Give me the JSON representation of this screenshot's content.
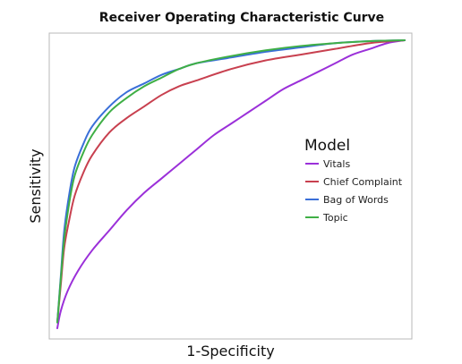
{
  "chart_data": {
    "type": "line",
    "title": "Receiver Operating Characteristic Curve",
    "xlabel": "1-Specificity",
    "ylabel": "Sensitivity",
    "xlim": [
      0,
      1
    ],
    "ylim": [
      0,
      1
    ],
    "grid": false,
    "x_ticks_shown": false,
    "y_ticks_shown": false,
    "legend": {
      "title": "Model",
      "position": "center-right"
    },
    "series": [
      {
        "name": "Vitals",
        "color": "#9B30D9",
        "points": [
          [
            0,
            0
          ],
          [
            0.01,
            0.06
          ],
          [
            0.03,
            0.13
          ],
          [
            0.06,
            0.2
          ],
          [
            0.1,
            0.27
          ],
          [
            0.15,
            0.34
          ],
          [
            0.2,
            0.41
          ],
          [
            0.25,
            0.47
          ],
          [
            0.3,
            0.52
          ],
          [
            0.35,
            0.57
          ],
          [
            0.4,
            0.62
          ],
          [
            0.45,
            0.67
          ],
          [
            0.5,
            0.71
          ],
          [
            0.55,
            0.75
          ],
          [
            0.6,
            0.79
          ],
          [
            0.65,
            0.83
          ],
          [
            0.7,
            0.86
          ],
          [
            0.75,
            0.89
          ],
          [
            0.8,
            0.92
          ],
          [
            0.85,
            0.95
          ],
          [
            0.9,
            0.97
          ],
          [
            0.95,
            0.99
          ],
          [
            1,
            1
          ]
        ]
      },
      {
        "name": "Chief Complaint",
        "color": "#C8404F",
        "points": [
          [
            0,
            0.02
          ],
          [
            0.01,
            0.15
          ],
          [
            0.02,
            0.28
          ],
          [
            0.035,
            0.38
          ],
          [
            0.05,
            0.46
          ],
          [
            0.075,
            0.54
          ],
          [
            0.1,
            0.6
          ],
          [
            0.15,
            0.68
          ],
          [
            0.2,
            0.73
          ],
          [
            0.25,
            0.77
          ],
          [
            0.3,
            0.81
          ],
          [
            0.35,
            0.84
          ],
          [
            0.4,
            0.86
          ],
          [
            0.5,
            0.9
          ],
          [
            0.6,
            0.93
          ],
          [
            0.7,
            0.95
          ],
          [
            0.8,
            0.97
          ],
          [
            0.9,
            0.99
          ],
          [
            1,
            1
          ]
        ]
      },
      {
        "name": "Bag of Words",
        "color": "#3A6FD8",
        "points": [
          [
            0,
            0.02
          ],
          [
            0.01,
            0.18
          ],
          [
            0.02,
            0.34
          ],
          [
            0.035,
            0.47
          ],
          [
            0.05,
            0.56
          ],
          [
            0.075,
            0.64
          ],
          [
            0.1,
            0.7
          ],
          [
            0.15,
            0.77
          ],
          [
            0.2,
            0.82
          ],
          [
            0.25,
            0.85
          ],
          [
            0.3,
            0.88
          ],
          [
            0.35,
            0.9
          ],
          [
            0.4,
            0.92
          ],
          [
            0.5,
            0.94
          ],
          [
            0.6,
            0.96
          ],
          [
            0.7,
            0.975
          ],
          [
            0.8,
            0.99
          ],
          [
            0.9,
            0.997
          ],
          [
            1,
            1
          ]
        ]
      },
      {
        "name": "Topic",
        "color": "#3FAF46",
        "points": [
          [
            0,
            0.02
          ],
          [
            0.01,
            0.17
          ],
          [
            0.02,
            0.31
          ],
          [
            0.035,
            0.44
          ],
          [
            0.05,
            0.53
          ],
          [
            0.075,
            0.61
          ],
          [
            0.1,
            0.67
          ],
          [
            0.15,
            0.75
          ],
          [
            0.2,
            0.8
          ],
          [
            0.25,
            0.84
          ],
          [
            0.3,
            0.87
          ],
          [
            0.35,
            0.9
          ],
          [
            0.4,
            0.92
          ],
          [
            0.5,
            0.945
          ],
          [
            0.6,
            0.965
          ],
          [
            0.7,
            0.98
          ],
          [
            0.8,
            0.99
          ],
          [
            0.9,
            0.997
          ],
          [
            1,
            1
          ]
        ]
      }
    ]
  }
}
